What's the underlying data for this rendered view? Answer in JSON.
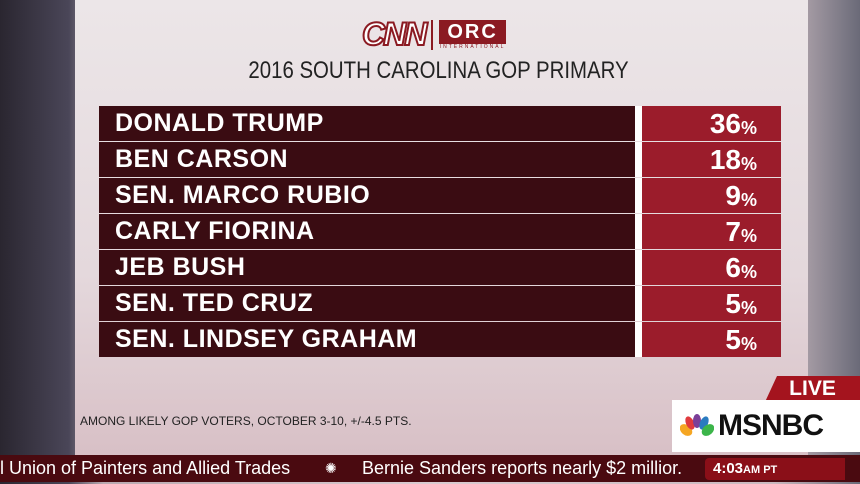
{
  "header": {
    "logo_cnn": "CNN",
    "logo_orc": "ORC",
    "logo_orc_sub": "INTERNATIONAL",
    "title": "2016 SOUTH CAROLINA GOP PRIMARY"
  },
  "chart_data": {
    "type": "table",
    "title": "2016 SOUTH CAROLINA GOP PRIMARY",
    "rows": [
      {
        "name": "DONALD TRUMP",
        "value": "36",
        "unit": "%"
      },
      {
        "name": "BEN CARSON",
        "value": "18",
        "unit": "%"
      },
      {
        "name": "SEN. MARCO RUBIO",
        "value": "9",
        "unit": "%"
      },
      {
        "name": "CARLY FIORINA",
        "value": "7",
        "unit": "%"
      },
      {
        "name": "JEB BUSH",
        "value": "6",
        "unit": "%"
      },
      {
        "name": "SEN. TED CRUZ",
        "value": "5",
        "unit": "%"
      },
      {
        "name": "SEN. LINDSEY GRAHAM",
        "value": "5",
        "unit": "%"
      }
    ],
    "footnote": "AMONG LIKELY GOP VOTERS, OCTOBER 3-10, +/-4.5 PTS."
  },
  "bug": {
    "live": "LIVE",
    "network": "MSNBC"
  },
  "ticker": {
    "item1": "l Union of Painters and Allied Trades",
    "item2": "Bernie Sanders reports nearly $2 millior.",
    "time": "4:03",
    "ampm": "AM PT"
  },
  "colors": {
    "name_bg": "#3a0c12",
    "pct_bg": "#9b1c2b",
    "ticker_bg": "#4a0a10"
  }
}
